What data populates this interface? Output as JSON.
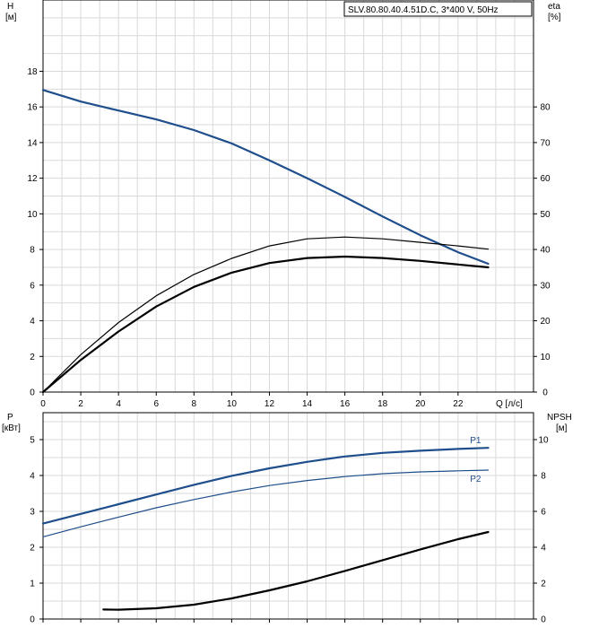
{
  "colors": {
    "blue": "#1f4e8c",
    "black": "#000000",
    "grid": "#d9d9d9"
  },
  "chart_data": [
    {
      "type": "line",
      "title": "SLV.80.80.40.4.51D.C, 3*400 V, 50Hz",
      "xlabel": "Q [л/с]",
      "ylabel_left": [
        "H",
        "[м]"
      ],
      "ylabel_right": [
        "eta",
        "[%]"
      ],
      "xlim": [
        0,
        26
      ],
      "ylim": [
        0,
        22
      ],
      "ylim_right": [
        0,
        110
      ],
      "x_ticks": [
        0,
        2,
        4,
        6,
        8,
        10,
        12,
        14,
        16,
        18,
        20,
        22
      ],
      "y_ticks": [
        0,
        2,
        4,
        6,
        8,
        10,
        12,
        14,
        16,
        18
      ],
      "y_right_ticks": [
        0,
        10,
        20,
        30,
        40,
        50,
        60,
        70,
        80
      ],
      "grid": true,
      "series": [
        {
          "axis": "left",
          "color": "#1f4e8c",
          "width": 2.2,
          "x": [
            0,
            2,
            4,
            6,
            8,
            10,
            12,
            14,
            16,
            18,
            20,
            22,
            23.6
          ],
          "y": [
            16.95,
            16.3,
            15.8,
            15.3,
            14.7,
            13.95,
            13.0,
            12.0,
            10.95,
            9.85,
            8.8,
            7.85,
            7.2
          ]
        },
        {
          "axis": "right",
          "color": "#000000",
          "width": 1.2,
          "x": [
            0,
            2,
            4,
            6,
            8,
            10,
            12,
            14,
            16,
            18,
            20,
            22,
            23.6
          ],
          "y": [
            0,
            10.5,
            19.5,
            27,
            33,
            37.5,
            41,
            43,
            43.5,
            43,
            42,
            41,
            40.1
          ]
        },
        {
          "axis": "right",
          "color": "#000000",
          "width": 2.2,
          "x": [
            0,
            2,
            4,
            6,
            8,
            10,
            12,
            14,
            16,
            18,
            20,
            22,
            23.6
          ],
          "y": [
            0,
            9,
            17,
            24,
            29.5,
            33.5,
            36.2,
            37.6,
            38.0,
            37.6,
            36.8,
            35.8,
            35.0
          ]
        }
      ]
    },
    {
      "type": "line",
      "ylabel_left": [
        "P",
        "[кВт]"
      ],
      "ylabel_right": [
        "NPSH",
        "[м]"
      ],
      "xlim": [
        0,
        26
      ],
      "ylim": [
        0,
        5.75
      ],
      "ylim_right": [
        0,
        11.5
      ],
      "x_ticks": [
        0,
        2,
        4,
        6,
        8,
        10,
        12,
        14,
        16,
        18,
        20,
        22
      ],
      "y_ticks": [
        0,
        1,
        2,
        3,
        4,
        5
      ],
      "y_right_ticks": [
        0,
        2,
        4,
        6,
        8,
        10
      ],
      "grid": true,
      "series": [
        {
          "name": "P1",
          "axis": "left",
          "color": "#1f4e8c",
          "width": 2.2,
          "x": [
            0,
            2,
            4,
            6,
            8,
            10,
            12,
            14,
            16,
            18,
            20,
            22,
            23.6
          ],
          "y": [
            2.66,
            2.93,
            3.2,
            3.47,
            3.74,
            3.99,
            4.2,
            4.38,
            4.53,
            4.63,
            4.69,
            4.74,
            4.77
          ]
        },
        {
          "name": "P2",
          "axis": "left",
          "color": "#1f4e8c",
          "width": 1.2,
          "x": [
            0,
            2,
            4,
            6,
            8,
            10,
            12,
            14,
            16,
            18,
            20,
            22,
            23.6
          ],
          "y": [
            2.29,
            2.57,
            2.84,
            3.1,
            3.33,
            3.54,
            3.72,
            3.86,
            3.97,
            4.05,
            4.1,
            4.13,
            4.15
          ]
        },
        {
          "axis": "right",
          "color": "#000000",
          "width": 2.2,
          "x": [
            3.2,
            4,
            6,
            8,
            10,
            12,
            14,
            16,
            18,
            20,
            22,
            23.6
          ],
          "y": [
            0.53,
            0.52,
            0.6,
            0.8,
            1.15,
            1.6,
            2.1,
            2.68,
            3.28,
            3.88,
            4.45,
            4.85
          ]
        }
      ]
    }
  ]
}
